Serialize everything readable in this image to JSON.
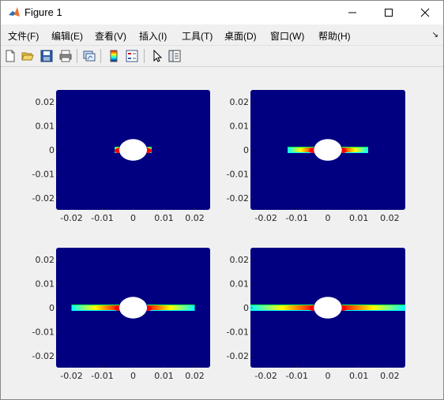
{
  "window": {
    "title": "Figure 1",
    "controls": [
      "minimize",
      "maximize",
      "close"
    ]
  },
  "menu": {
    "items": [
      {
        "label": "文件(F)"
      },
      {
        "label": "编辑(E)"
      },
      {
        "label": "查看(V)"
      },
      {
        "label": "插入(I)"
      },
      {
        "label": "工具(T)"
      },
      {
        "label": "桌面(D)"
      },
      {
        "label": "窗口(W)"
      },
      {
        "label": "帮助(H)"
      }
    ],
    "dock_glyph": "↘"
  },
  "toolbar": {
    "icons": [
      "new-figure-icon",
      "open-file-icon",
      "save-icon",
      "print-icon",
      "link-plot-icon",
      "insert-colorbar-icon",
      "insert-legend-icon",
      "edit-plot-arrow-icon",
      "property-inspector-icon"
    ]
  },
  "colors": {
    "background": "#000080",
    "hole": "#ffffff",
    "low": "#00ffff",
    "mid": "#ffff00",
    "high": "#ff0000",
    "accent_green": "#00ff40"
  },
  "colormap": "jet",
  "chart_data": [
    {
      "type": "heatmap",
      "xlim": [
        -0.025,
        0.025
      ],
      "ylim": [
        -0.025,
        0.025
      ],
      "xticks": [
        -0.02,
        -0.01,
        0,
        0.01,
        0.02
      ],
      "yticks": [
        0.02,
        0.01,
        0,
        -0.01,
        -0.02
      ],
      "xtick_labels": [
        "-0.02",
        "-0.01",
        "0",
        "0.01",
        "0.02"
      ],
      "ytick_labels": [
        "0.02",
        "0.01",
        "0",
        "-0.01",
        "-0.02"
      ],
      "hole": {
        "center": [
          0,
          0
        ],
        "radius": 0.0045
      },
      "band_extent_x": [
        -0.006,
        0.006
      ]
    },
    {
      "type": "heatmap",
      "xlim": [
        -0.025,
        0.025
      ],
      "ylim": [
        -0.025,
        0.025
      ],
      "xticks": [
        -0.02,
        -0.01,
        0,
        0.01,
        0.02
      ],
      "yticks": [
        0.02,
        0.01,
        0,
        -0.01,
        -0.02
      ],
      "xtick_labels": [
        "-0.02",
        "-0.01",
        "0",
        "0.01",
        "0.02"
      ],
      "ytick_labels": [
        "0.02",
        "0.01",
        "0",
        "-0.01",
        "-0.02"
      ],
      "hole": {
        "center": [
          0,
          0
        ],
        "radius": 0.0045
      },
      "band_extent_x": [
        -0.013,
        0.013
      ]
    },
    {
      "type": "heatmap",
      "xlim": [
        -0.025,
        0.025
      ],
      "ylim": [
        -0.025,
        0.025
      ],
      "xticks": [
        -0.02,
        -0.01,
        0,
        0.01,
        0.02
      ],
      "yticks": [
        0.02,
        0.01,
        0,
        -0.01,
        -0.02
      ],
      "xtick_labels": [
        "-0.02",
        "-0.01",
        "0",
        "0.01",
        "0.02"
      ],
      "ytick_labels": [
        "0.02",
        "0.01",
        "0",
        "-0.01",
        "-0.02"
      ],
      "hole": {
        "center": [
          0,
          0
        ],
        "radius": 0.0045
      },
      "band_extent_x": [
        -0.02,
        0.02
      ]
    },
    {
      "type": "heatmap",
      "xlim": [
        -0.025,
        0.025
      ],
      "ylim": [
        -0.025,
        0.025
      ],
      "xticks": [
        -0.02,
        -0.01,
        0,
        0.01,
        0.02
      ],
      "yticks": [
        0.02,
        0.01,
        0,
        -0.01,
        -0.02
      ],
      "xtick_labels": [
        "-0.02",
        "-0.01",
        "0",
        "0.01",
        "0.02"
      ],
      "ytick_labels": [
        "0.02",
        "0.01",
        "0",
        "-0.01",
        "-0.02"
      ],
      "hole": {
        "center": [
          0,
          0
        ],
        "radius": 0.0045
      },
      "band_extent_x": [
        -0.025,
        0.025
      ]
    }
  ]
}
